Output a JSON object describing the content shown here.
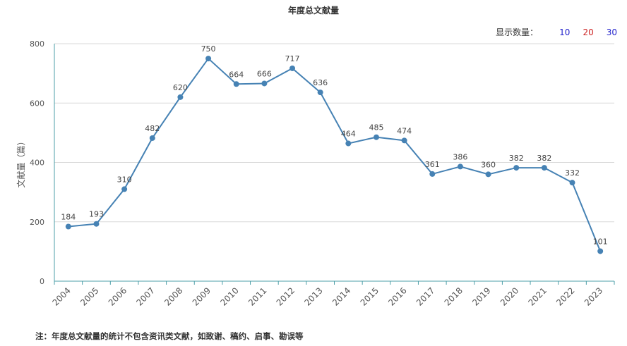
{
  "header": {
    "title": "年度总文献量"
  },
  "count_selector": {
    "label": "显示数量：",
    "options": [
      {
        "label": "10",
        "color": "#2222cc"
      },
      {
        "label": "20",
        "color": "#cc2222"
      },
      {
        "label": "30",
        "color": "#2222cc"
      }
    ]
  },
  "footnote": "注：年度总文献量的统计不包含资讯类文献，如致谢、稿约、启事、勘误等",
  "chart_data": {
    "type": "line",
    "title": "年度总文献量",
    "xlabel": "",
    "ylabel": "文献量（篇）",
    "ylim": [
      0,
      800
    ],
    "yticks": [
      0,
      200,
      400,
      600,
      800
    ],
    "grid": true,
    "line_color": "#4682b4",
    "categories": [
      "2004",
      "2005",
      "2006",
      "2007",
      "2008",
      "2009",
      "2010",
      "2011",
      "2012",
      "2013",
      "2014",
      "2015",
      "2016",
      "2017",
      "2018",
      "2019",
      "2020",
      "2021",
      "2022",
      "2023"
    ],
    "series": [
      {
        "values": [
          184,
          193,
          310,
          482,
          620,
          750,
          664,
          666,
          717,
          636,
          464,
          485,
          474,
          361,
          386,
          360,
          382,
          382,
          332,
          101
        ]
      }
    ]
  }
}
